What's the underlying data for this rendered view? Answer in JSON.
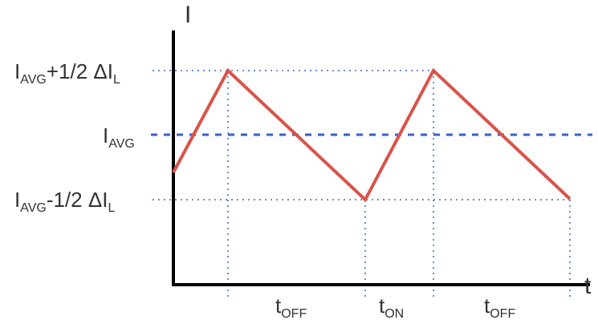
{
  "axes": {
    "y_label": "I",
    "x_label": "t"
  },
  "levels": {
    "upper": {
      "main": "I",
      "sub": "AVG",
      "mid": "+1/2 ΔI",
      "sub2": "L"
    },
    "average": {
      "main": "I",
      "sub": "AVG"
    },
    "lower": {
      "main": "I",
      "sub": "AVG",
      "mid": "-1/2 ΔI",
      "sub2": "L"
    }
  },
  "intervals": [
    {
      "main": "t",
      "sub": "OFF"
    },
    {
      "main": "t",
      "sub": "ON"
    },
    {
      "main": "t",
      "sub": "OFF"
    }
  ],
  "colors": {
    "waveform": "#d9534a",
    "average_line": "#3a5fc8",
    "guide_lines": "#6a8fd0",
    "axes": "#000000"
  }
}
